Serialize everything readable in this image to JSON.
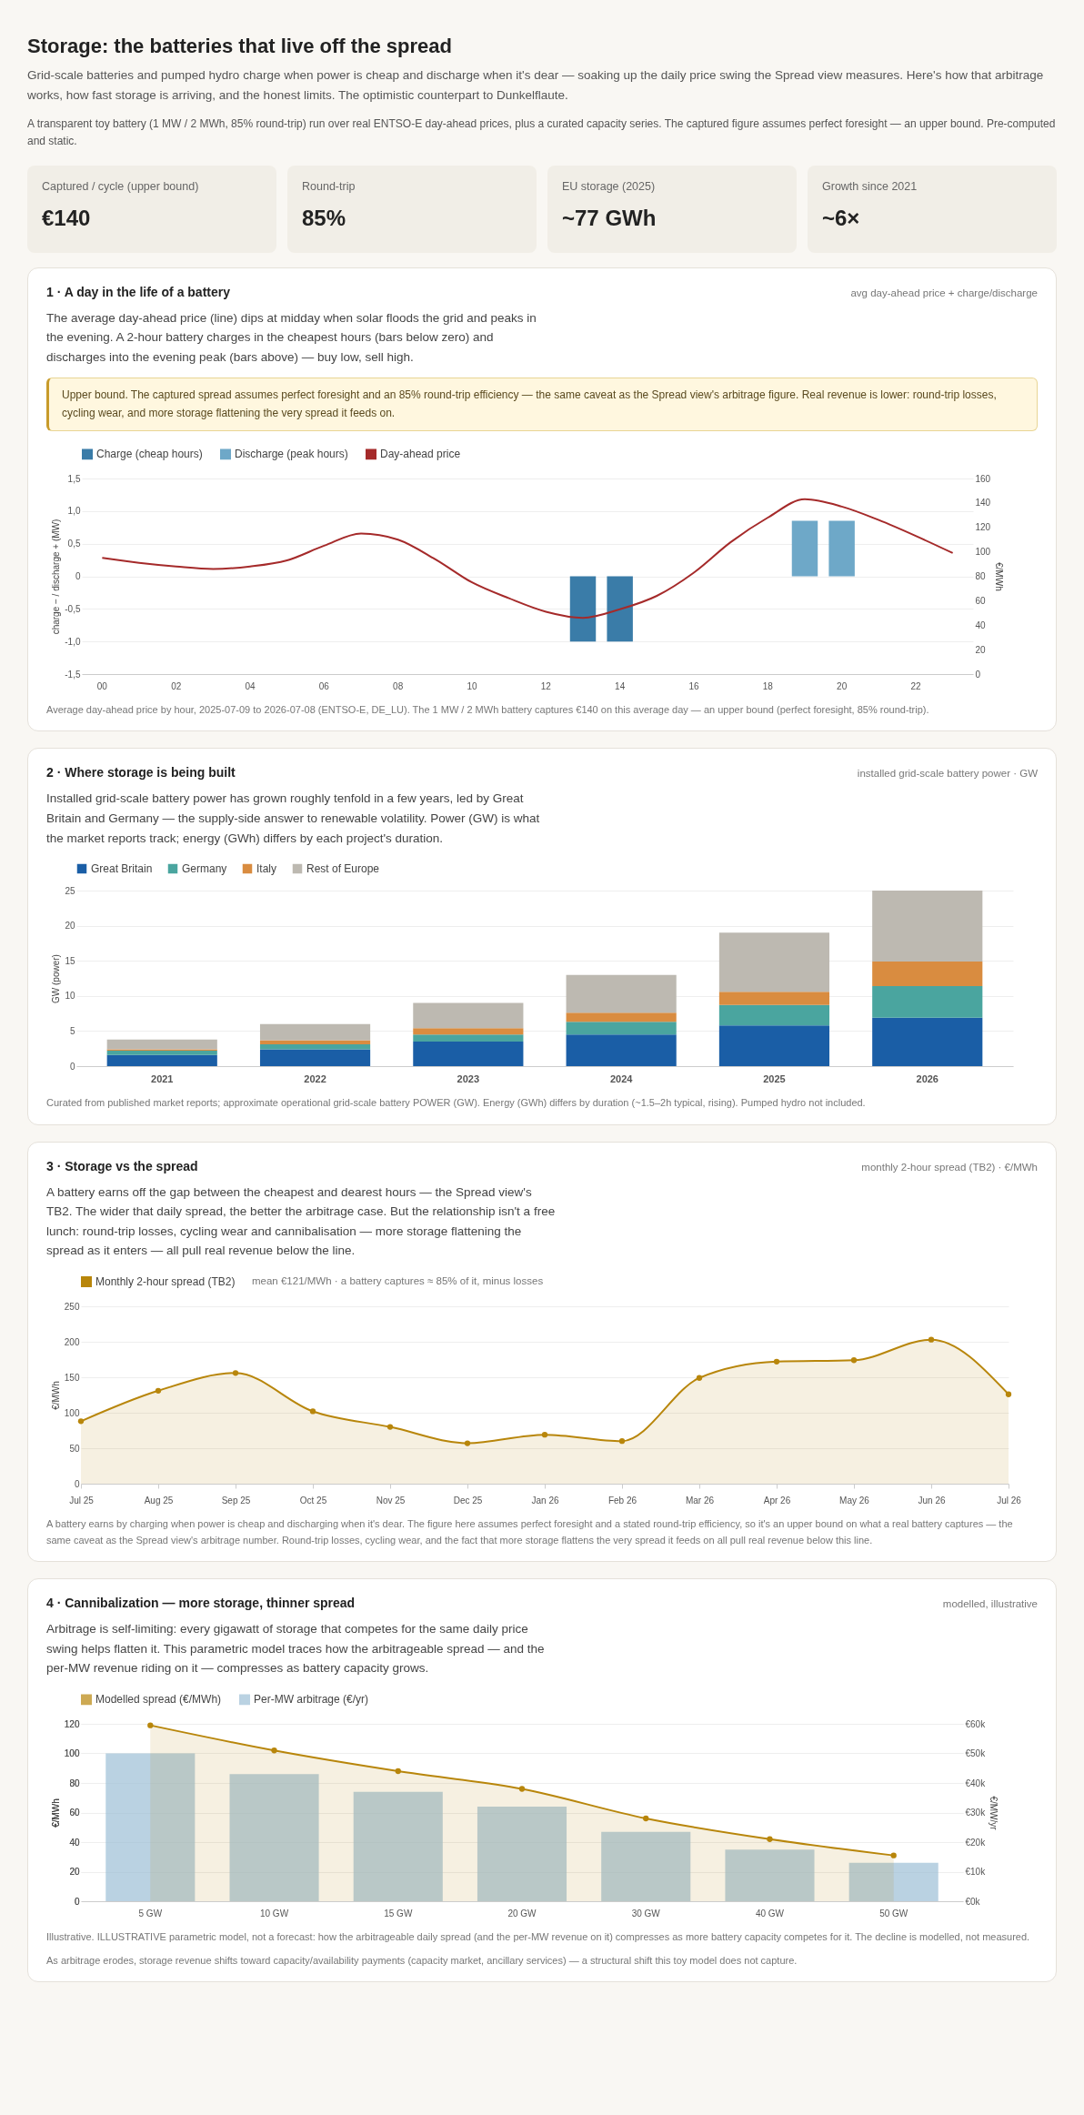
{
  "chart_data": [
    {
      "type": "other",
      "title": "Storage: the batteries that live off the spread",
      "subtitle": "Grid-scale batteries and pumped hydro charge when power is cheap and discharge when it's dear — soaking up the daily price swing the Spread view measures. Here's how that arbitrage works, how fast storage is arriving, and the honest limits. The optimistic counterpart to Dunkelflaute.",
      "annotations": [
        "A transparent toy battery (1 MW / 2 MWh, 85% round-trip) run over real ENTSO-E day-ahead prices, plus a curated capacity series. The captured figure assumes perfect foresight — an upper bound. Pre-computed and static.",
        "Captured / cycle (upper bound)",
        "€140",
        "Round-trip",
        "85%",
        "EU storage (2025)",
        "~77 GWh",
        "Growth since 2021",
        "~6×"
      ]
    },
    {
      "type": "bar",
      "title": "1 · A day in the life of a battery",
      "subtitle": "The average day-ahead price (line) dips at midday when solar floods the grid and peaks in the evening. A 2-hour battery charges in the cheapest hours (bars below zero) and discharges into the evening peak (bars above) — buy low, sell high.",
      "annotations": [
        "avg day-ahead price + charge/discharge",
        "Upper bound. The captured spread assumes perfect foresight and an 85% round-trip efficiency — the same caveat as the Spread view's arbitrage figure. Real revenue is lower: round-trip losses, cycling wear, and more storage flattening the very spread it feeds on.",
        "Average day-ahead price by hour, 2025-07-09 to 2026-07-08 (ENTSO-E, DE_LU). The 1 MW / 2 MWh battery captures €140 on this average day — an upper bound (perfect foresight, 85% round-trip)."
      ],
      "categories": [
        "00",
        null,
        "02",
        null,
        "04",
        null,
        "06",
        null,
        "08",
        null,
        "10",
        null,
        "12",
        null,
        "14",
        null,
        "16",
        null,
        "18",
        null,
        "20",
        null,
        "22",
        null
      ],
      "series": [
        {
          "name": "Charge (cheap hours)",
          "color": "#3a7ca8",
          "values": [
            null,
            null,
            null,
            null,
            null,
            null,
            null,
            null,
            null,
            null,
            null,
            null,
            null,
            -1.0,
            -1.0,
            null,
            null,
            null,
            null,
            null,
            null,
            null,
            null,
            null
          ]
        },
        {
          "name": "Discharge (peak hours)",
          "color": "#6ea8c8",
          "values": [
            null,
            null,
            null,
            null,
            null,
            null,
            null,
            null,
            null,
            null,
            null,
            null,
            null,
            null,
            null,
            null,
            null,
            null,
            null,
            0.85,
            0.85,
            null,
            null,
            null
          ]
        },
        {
          "name": "Day-ahead price",
          "type": "line",
          "axis": "y2",
          "color": "#a52a2a",
          "values": [
            95,
            91,
            88,
            86,
            88,
            93,
            105,
            115,
            110,
            94,
            75,
            62,
            51,
            46,
            53,
            64,
            83,
            108,
            128,
            143,
            137,
            126,
            113,
            99
          ]
        }
      ],
      "ylabel": "charge − / discharge + (MW)",
      "y2label": "€/MWh",
      "ylim": [
        -1.5,
        1.5
      ],
      "yticks": [
        {
          "value": -1.5,
          "label": "-1,5"
        },
        {
          "value": -1,
          "label": "-1,0"
        },
        {
          "value": -0.5,
          "label": "-0,5"
        },
        0,
        {
          "value": 0.5,
          "label": "0,5"
        },
        {
          "value": 1,
          "label": "1,0"
        },
        {
          "value": 1.5,
          "label": "1,5"
        }
      ],
      "y2lim": [
        0,
        160
      ],
      "y2ticks": [
        0,
        20,
        40,
        60,
        80,
        100,
        120,
        140,
        160
      ],
      "grid": "y",
      "legend": "top left"
    },
    {
      "type": "bar",
      "stacked": true,
      "title": "2 · Where storage is being built",
      "subtitle": "Installed grid-scale battery power has grown roughly tenfold in a few years, led by Great Britain and Germany — the supply-side answer to renewable volatility. Power (GW) is what the market reports track; energy (GWh) differs by each project's duration.",
      "annotations": [
        "installed grid-scale battery power · GW",
        "Curated from published market reports; approximate operational grid-scale battery POWER (GW). Energy (GWh) differs by duration (~1.5–2h typical, rising). Pumped hydro not included."
      ],
      "categories": [
        "2021",
        "2022",
        "2023",
        "2024",
        "2025",
        "2026"
      ],
      "series": [
        {
          "name": "Great Britain",
          "color": "#1a5ea6",
          "values": [
            1.6,
            2.4,
            3.5,
            4.5,
            5.8,
            6.9
          ]
        },
        {
          "name": "Germany",
          "color": "#4aa59f",
          "values": [
            0.6,
            0.7,
            1.0,
            1.8,
            2.9,
            4.5
          ]
        },
        {
          "name": "Italy",
          "color": "#d98c40",
          "values": [
            0.2,
            0.6,
            0.9,
            1.3,
            1.9,
            3.5
          ]
        },
        {
          "name": "Rest of Europe",
          "color": "#bdb9b1",
          "values": [
            1.4,
            2.3,
            3.6,
            5.4,
            8.4,
            10.1
          ]
        }
      ],
      "ylabel": "GW (power)",
      "ylim": [
        0,
        25
      ],
      "yticks": [
        0,
        5,
        10,
        15,
        20,
        25
      ],
      "grid": "y",
      "legend": "top left"
    },
    {
      "type": "area",
      "title": "3 · Storage vs the spread",
      "subtitle": "A battery earns off the gap between the cheapest and dearest hours — the Spread view's TB2. The wider that daily spread, the better the arbitrage case. But the relationship isn't a free lunch: round-trip losses, cycling wear and cannibalisation — more storage flattening the spread as it enters — all pull real revenue below the line.",
      "annotations": [
        "monthly 2-hour spread (TB2) · €/MWh",
        "mean €121/MWh · a battery captures ≈ 85% of it, minus losses",
        "A battery earns by charging when power is cheap and discharging when it's dear. The figure here assumes perfect foresight and a stated round-trip efficiency, so it's an upper bound on what a real battery captures — the same caveat as the Spread view's arbitrage number. Round-trip losses, cycling wear, and the fact that more storage flattens the very spread it feeds on all pull real revenue below this line."
      ],
      "categories": [
        "Jul 25",
        "Aug 25",
        "Sep 25",
        "Oct 25",
        "Nov 25",
        "Dec 25",
        "Jan 26",
        "Feb 26",
        "Mar 26",
        "Apr 26",
        "May 26",
        "Jun 26",
        "Jul 26"
      ],
      "series": [
        {
          "name": "Monthly 2-hour spread (TB2)",
          "color": "#b8860b",
          "values": [
            88,
            131,
            156,
            102,
            80,
            57,
            69,
            60,
            149,
            172,
            174,
            203,
            126
          ]
        }
      ],
      "ylabel": "€/MWh",
      "ylim": [
        0,
        250
      ],
      "yticks": [
        0,
        50,
        100,
        150,
        200,
        250
      ],
      "grid": "y",
      "legend": "top left",
      "marker": "circle"
    },
    {
      "type": "bar",
      "title": "4 · Cannibalization — more storage, thinner spread",
      "subtitle": "Arbitrage is self-limiting: every gigawatt of storage that competes for the same daily price swing helps flatten it. This parametric model traces how the arbitrageable spread — and the per-MW revenue riding on it — compresses as battery capacity grows.",
      "annotations": [
        "modelled, illustrative",
        "Illustrative. ILLUSTRATIVE parametric model, not a forecast: how the arbitrageable daily spread (and the per-MW revenue on it) compresses as more battery capacity competes for it. The decline is modelled, not measured.",
        "As arbitrage erodes, storage revenue shifts toward capacity/availability payments (capacity market, ancillary services) — a structural shift this toy model does not capture."
      ],
      "categories": [
        "5 GW",
        "10 GW",
        "15 GW",
        "20 GW",
        "30 GW",
        "40 GW",
        "50 GW"
      ],
      "series": [
        {
          "name": "Modelled spread (€/MWh)",
          "type": "area",
          "color": "#b8860b",
          "values": [
            119,
            102,
            88,
            76,
            56,
            42,
            31
          ]
        },
        {
          "name": "Per-MW arbitrage (€/yr)",
          "axis": "y2",
          "color": "#9dbfd6",
          "values": [
            50000,
            43000,
            37000,
            32000,
            23500,
            17500,
            13000
          ]
        }
      ],
      "ylabel": "€/MWh",
      "y2label": "€/MW/yr",
      "ylim": [
        0,
        120
      ],
      "yticks": [
        0,
        20,
        40,
        60,
        80,
        100,
        120
      ],
      "y2lim": [
        0,
        60000
      ],
      "y2ticks": [
        {
          "value": 0,
          "label": "€0k"
        },
        {
          "value": 10000,
          "label": "€10k"
        },
        {
          "value": 20000,
          "label": "€20k"
        },
        {
          "value": 30000,
          "label": "€30k"
        },
        {
          "value": 40000,
          "label": "€40k"
        },
        {
          "value": 50000,
          "label": "€50k"
        },
        {
          "value": 60000,
          "label": "€60k"
        }
      ],
      "grid": "y",
      "legend": "top left",
      "marker": "circle"
    }
  ]
}
